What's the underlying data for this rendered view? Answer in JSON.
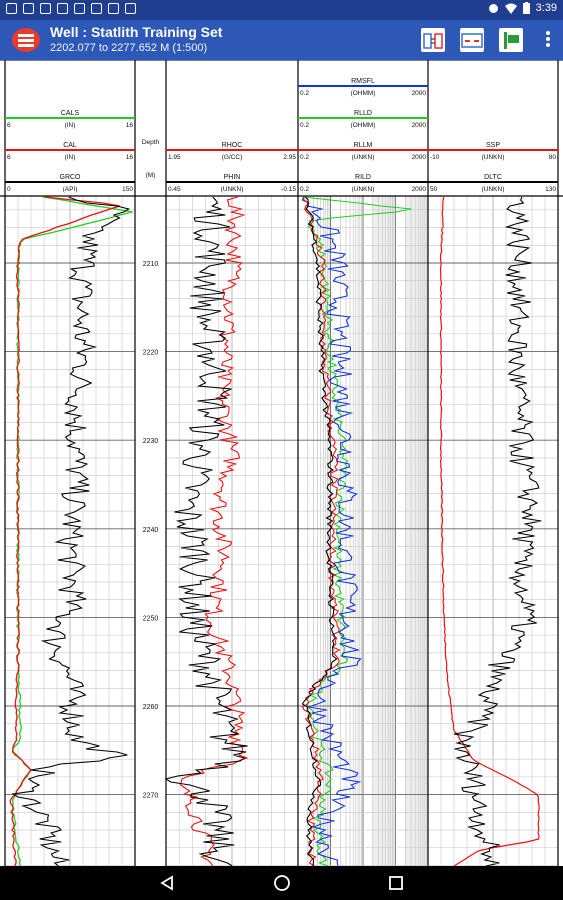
{
  "status_bar": {
    "time": "3:39",
    "left_icons": [
      "notification-icon",
      "notification-icon",
      "notification-icon",
      "notification-icon",
      "notification-icon",
      "notification-icon",
      "notification-icon",
      "notification-icon"
    ],
    "right_icons": [
      "vpn-key-icon",
      "wifi-icon",
      "battery-icon"
    ]
  },
  "app_bar": {
    "title": "Well : Statlith Training Set",
    "subtitle": "2202.077 to 2277.652 M (1:500)",
    "actions": [
      "track-settings-icon",
      "curve-settings-icon",
      "zone-marker-icon",
      "more-vert-icon"
    ]
  },
  "tracks": [
    {
      "curves": [
        {
          "name": "CALS",
          "unit": "(IN)",
          "min": "6",
          "max": "16",
          "color": "#22cc22"
        },
        {
          "name": "CAL",
          "unit": "(IN)",
          "min": "6",
          "max": "16",
          "color": "#ee1111"
        },
        {
          "name": "GRCO",
          "unit": "(API)",
          "min": "0",
          "max": "150",
          "color": "#000000"
        }
      ]
    },
    {
      "depth": {
        "label": "Depth",
        "unit": "(M)",
        "ticks": [
          "2210",
          "2220",
          "2230",
          "2240",
          "2250",
          "2260",
          "2270"
        ]
      }
    },
    {
      "curves": [
        {
          "name": "RHOC",
          "unit": "(G/CC)",
          "min": "1.95",
          "max": "2.95",
          "color": "#ee1111"
        },
        {
          "name": "PHIN",
          "unit": "(UNKN)",
          "min": "0.45",
          "max": "-0.15",
          "color": "#000000"
        }
      ]
    },
    {
      "curves": [
        {
          "name": "RMSFL",
          "unit": "(OHMM)",
          "min": "0.2",
          "max": "2000",
          "color": "#1133dd"
        },
        {
          "name": "RLLD",
          "unit": "(OHMM)",
          "min": "0.2",
          "max": "2000",
          "color": "#22cc22"
        },
        {
          "name": "RLLM",
          "unit": "(UNKN)",
          "min": "0.2",
          "max": "2000",
          "color": "#ee1111"
        },
        {
          "name": "RILD",
          "unit": "(UNKN)",
          "min": "0.2",
          "max": "2000",
          "color": "#000000"
        }
      ]
    },
    {
      "curves": [
        {
          "name": "SSP",
          "unit": "(UNKN)",
          "min": "-10",
          "max": "80",
          "color": "#ee1111"
        },
        {
          "name": "DLTC",
          "unit": "(UNKN)",
          "min": "50",
          "max": "130",
          "color": "#000000"
        }
      ]
    }
  ],
  "nav_bar": {
    "buttons": [
      "back-icon",
      "home-icon",
      "recents-icon"
    ]
  }
}
